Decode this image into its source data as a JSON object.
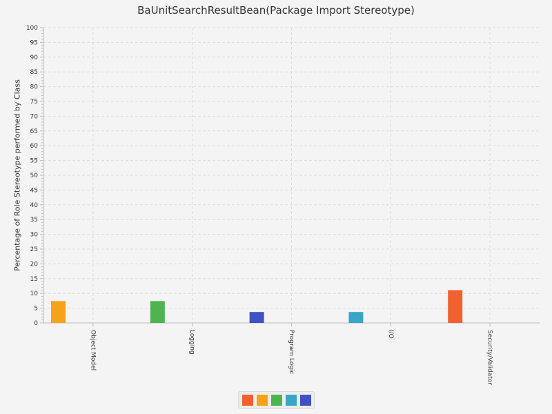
{
  "chart_data": {
    "type": "bar",
    "title": "BaUnitSearchResultBean(Package Import Stereotype)",
    "ylabel": "Percentage of Role Stereotype performed by Class",
    "xlabel": "",
    "ylim": [
      0,
      100
    ],
    "y_major_step": 5,
    "y_minor_step": 1,
    "grid": true,
    "legend_placement": "bottom",
    "categories": [
      "Object Model",
      "Logging",
      "Program Logic",
      "I/O",
      "Security/Validator"
    ],
    "series": [
      {
        "color": "#f0612f",
        "values": [
          0,
          0,
          0,
          0,
          11.1
        ]
      },
      {
        "color": "#f5a31a",
        "values": [
          7.4,
          0,
          0,
          0,
          0
        ]
      },
      {
        "color": "#4fb44f",
        "values": [
          0,
          7.4,
          0,
          0,
          0
        ]
      },
      {
        "color": "#3aa5c6",
        "values": [
          0,
          0,
          0,
          3.7,
          0
        ]
      },
      {
        "color": "#3f51c4",
        "values": [
          0,
          0,
          3.7,
          0,
          0
        ]
      }
    ]
  }
}
